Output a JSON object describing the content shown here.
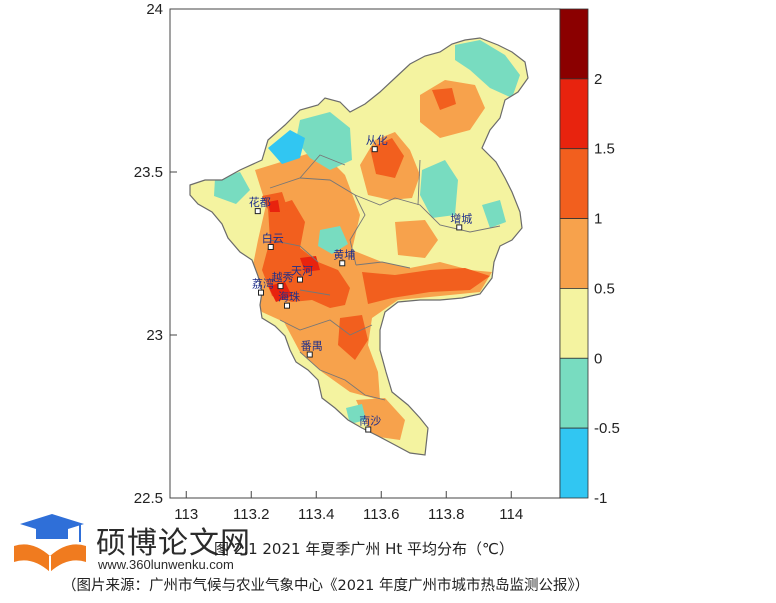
{
  "map": {
    "x_ticks": [
      "113",
      "113.2",
      "113.4",
      "113.6",
      "113.8",
      "114"
    ],
    "y_ticks": [
      "24",
      "23.5",
      "23",
      "22.5"
    ],
    "districts": [
      {
        "name": "从化",
        "lon": 113.58,
        "lat": 23.57
      },
      {
        "name": "增城",
        "lon": 113.84,
        "lat": 23.33
      },
      {
        "name": "花都",
        "lon": 113.22,
        "lat": 23.38
      },
      {
        "name": "白云",
        "lon": 113.26,
        "lat": 23.27
      },
      {
        "name": "黄埔",
        "lon": 113.48,
        "lat": 23.22
      },
      {
        "name": "天河",
        "lon": 113.35,
        "lat": 23.17
      },
      {
        "name": "越秀",
        "lon": 113.29,
        "lat": 23.15
      },
      {
        "name": "荔湾",
        "lon": 113.23,
        "lat": 23.13
      },
      {
        "name": "海珠",
        "lon": 113.31,
        "lat": 23.09
      },
      {
        "name": "番禺",
        "lon": 113.38,
        "lat": 22.94
      },
      {
        "name": "南沙",
        "lon": 113.56,
        "lat": 22.71
      }
    ]
  },
  "legend": {
    "levels": [
      {
        "label": "",
        "color": "#8b0000"
      },
      {
        "label": "2",
        "color": "#e8230e"
      },
      {
        "label": "1.5",
        "color": "#f25f1e"
      },
      {
        "label": "1",
        "color": "#f7a24c"
      },
      {
        "label": "0.5",
        "color": "#f4f3a0"
      },
      {
        "label": "0",
        "color": "#78dcc0"
      },
      {
        "label": "-0.5",
        "color": "#31c6f2"
      },
      {
        "label": "-1",
        "color": ""
      }
    ]
  },
  "caption": {
    "title": "图 2.1  2021 年夏季广州 Ht 平均分布（℃）",
    "source": "（图片来源：广州市气候与农业气象中心《2021 年度广州市城市热岛监测公报》）"
  },
  "watermark": {
    "name": "硕博论文网",
    "url": "www.360lunwenku.com"
  }
}
